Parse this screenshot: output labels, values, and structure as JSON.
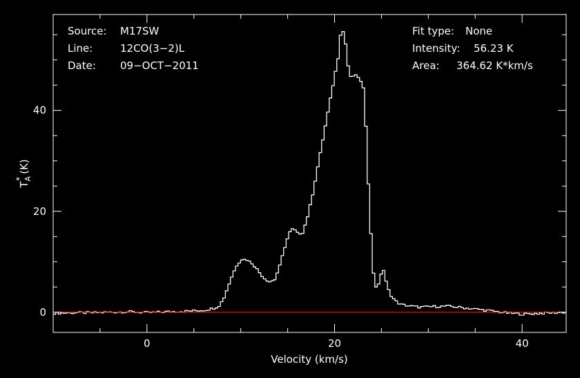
{
  "header": {
    "left": [
      {
        "key": "Source:",
        "value": "M17SW"
      },
      {
        "key": "Line:",
        "value": "12CO(3−2)L"
      },
      {
        "key": "Date:",
        "value": "09−OCT−2011"
      }
    ],
    "right": [
      {
        "key": "Fit type:",
        "value": "None"
      },
      {
        "key": "Intensity:",
        "value": "56.23 K"
      },
      {
        "key": "Area:",
        "value": "364.62 K*km/s"
      }
    ]
  },
  "colors": {
    "background": "#000000",
    "frame": "#ffffff",
    "spectrum": "#ffffff",
    "baseline": "#ff2020"
  },
  "chart_data": {
    "type": "line",
    "xlabel": "Velocity (km/s)",
    "ylabel_main": "T",
    "ylabel_sub": "A",
    "ylabel_sup": "*",
    "ylabel_unit": "(K)",
    "xlim": [
      -10,
      44.7
    ],
    "ylim": [
      -4,
      59
    ],
    "xticks": [
      0,
      20,
      40
    ],
    "yticks": [
      0,
      20,
      40
    ],
    "grid": false,
    "series": [
      {
        "style": "step",
        "x": [
          -10,
          -8,
          -6,
          -4,
          -2,
          0,
          2,
          4,
          5,
          6,
          7,
          7.5,
          8,
          8.5,
          9,
          9.5,
          10,
          10.5,
          11,
          11.5,
          12,
          12.5,
          13,
          13.5,
          14,
          14.5,
          15,
          15.3,
          15.7,
          16,
          16.5,
          17,
          17.5,
          18,
          18.5,
          19,
          19.5,
          20,
          20.3,
          20.5,
          20.7,
          21,
          21.3,
          21.6,
          22,
          22.5,
          23,
          23.3,
          23.6,
          24,
          24.3,
          24.6,
          25,
          25.3,
          25.6,
          26,
          26.5,
          27,
          28,
          29,
          30,
          32,
          34,
          36,
          38,
          40,
          42,
          44.7
        ],
        "y": [
          -0.2,
          -0.1,
          -0.1,
          0.0,
          0.1,
          -0.1,
          0.1,
          0.2,
          0.3,
          0.4,
          0.8,
          1.2,
          2.5,
          5,
          7.5,
          9.5,
          10.5,
          10.4,
          9.8,
          8.8,
          7.5,
          6.5,
          6.0,
          6.5,
          9,
          12.5,
          15.5,
          16.5,
          16.2,
          15.5,
          15.8,
          19,
          23,
          28,
          33,
          38,
          43,
          48,
          51,
          55,
          56.2,
          54,
          49,
          46.5,
          47,
          46.5,
          44,
          34,
          20,
          8,
          5,
          5.5,
          9.2,
          6.5,
          4.5,
          3.0,
          2.0,
          1.5,
          1.2,
          1.0,
          1.1,
          1.2,
          0.8,
          0.4,
          -0.1,
          -0.4,
          -0.2,
          0.0
        ]
      },
      {
        "style": "flat",
        "x": [
          -10,
          44.7
        ],
        "y": [
          0,
          0
        ]
      }
    ]
  }
}
